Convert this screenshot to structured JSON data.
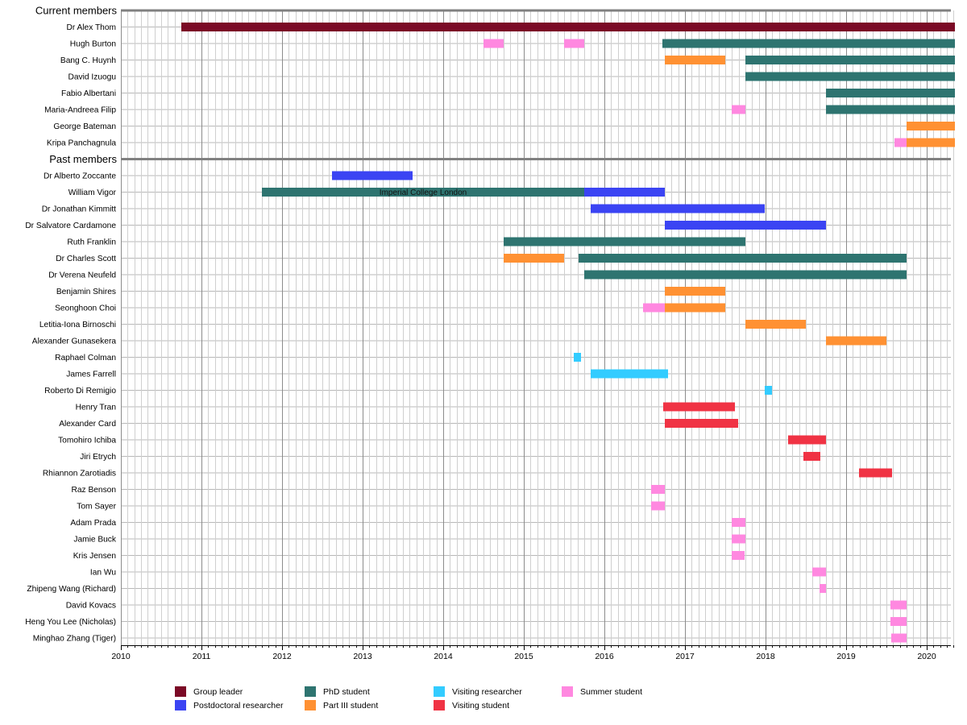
{
  "chart_data": {
    "type": "timeline",
    "x_axis": {
      "min": 2010,
      "max": 2020.35,
      "ticks": [
        "2010",
        "2011",
        "2012",
        "2013",
        "2014",
        "2015",
        "2016",
        "2017",
        "2018",
        "2019",
        "2020"
      ]
    },
    "categories": [
      {
        "key": "group_leader",
        "label": "Group leader",
        "color": "#7b0a26"
      },
      {
        "key": "postdoc",
        "label": "Postdoctoral researcher",
        "color": "#3b44f3"
      },
      {
        "key": "phd",
        "label": "PhD student",
        "color": "#2e7470"
      },
      {
        "key": "part3",
        "label": "Part III student",
        "color": "#ff9133"
      },
      {
        "key": "visiting_researcher",
        "label": "Visiting researcher",
        "color": "#33ccff"
      },
      {
        "key": "visiting_student",
        "label": "Visiting student",
        "color": "#f03344"
      },
      {
        "key": "summer",
        "label": "Summer student",
        "color": "#ff88e0"
      }
    ],
    "sections": [
      {
        "title": "Current members",
        "members": [
          {
            "name": "Dr Alex Thom",
            "periods": [
              {
                "cat": "group_leader",
                "start": 2010.75,
                "end": 2020.35
              }
            ]
          },
          {
            "name": "Hugh Burton",
            "periods": [
              {
                "cat": "summer",
                "start": 2014.5,
                "end": 2014.75
              },
              {
                "cat": "summer",
                "start": 2015.5,
                "end": 2015.75
              },
              {
                "cat": "phd",
                "start": 2016.72,
                "end": 2020.35
              }
            ]
          },
          {
            "name": "Bang C. Huynh",
            "periods": [
              {
                "cat": "part3",
                "start": 2016.75,
                "end": 2017.5
              },
              {
                "cat": "phd",
                "start": 2017.75,
                "end": 2020.35
              }
            ]
          },
          {
            "name": "David Izuogu",
            "periods": [
              {
                "cat": "phd",
                "start": 2017.75,
                "end": 2020.35
              }
            ]
          },
          {
            "name": "Fabio Albertani",
            "periods": [
              {
                "cat": "phd",
                "start": 2018.75,
                "end": 2020.35
              }
            ]
          },
          {
            "name": "Maria-Andreea Filip",
            "periods": [
              {
                "cat": "summer",
                "start": 2017.58,
                "end": 2017.75
              },
              {
                "cat": "phd",
                "start": 2018.75,
                "end": 2020.35
              }
            ]
          },
          {
            "name": "George Bateman",
            "periods": [
              {
                "cat": "part3",
                "start": 2019.75,
                "end": 2020.35
              }
            ]
          },
          {
            "name": "Kripa Panchagnula",
            "periods": [
              {
                "cat": "summer",
                "start": 2019.6,
                "end": 2019.75
              },
              {
                "cat": "part3",
                "start": 2019.75,
                "end": 2020.35
              }
            ]
          }
        ]
      },
      {
        "title": "Past members",
        "members": [
          {
            "name": "Dr Alberto Zoccante",
            "periods": [
              {
                "cat": "postdoc",
                "start": 2012.62,
                "end": 2013.62
              }
            ]
          },
          {
            "name": "William Vigor",
            "periods": [
              {
                "cat": "phd",
                "start": 2011.75,
                "end": 2015.75
              },
              {
                "cat": "postdoc",
                "start": 2015.75,
                "end": 2016.75
              }
            ]
          },
          {
            "name": "Dr Jonathan Kimmitt",
            "periods": [
              {
                "cat": "postdoc",
                "start": 2015.83,
                "end": 2017.99
              }
            ]
          },
          {
            "name": "Dr Salvatore Cardamone",
            "periods": [
              {
                "cat": "postdoc",
                "start": 2016.75,
                "end": 2018.75
              }
            ]
          },
          {
            "name": "Ruth Franklin",
            "periods": [
              {
                "cat": "phd",
                "start": 2014.75,
                "end": 2017.75
              }
            ]
          },
          {
            "name": "Dr Charles Scott",
            "periods": [
              {
                "cat": "part3",
                "start": 2014.75,
                "end": 2015.5
              },
              {
                "cat": "phd",
                "start": 2015.68,
                "end": 2019.75
              }
            ]
          },
          {
            "name": "Dr Verena Neufeld",
            "periods": [
              {
                "cat": "phd",
                "start": 2015.75,
                "end": 2019.75
              }
            ]
          },
          {
            "name": "Benjamin Shires",
            "periods": [
              {
                "cat": "part3",
                "start": 2016.75,
                "end": 2017.5
              }
            ]
          },
          {
            "name": "Seonghoon Choi",
            "periods": [
              {
                "cat": "summer",
                "start": 2016.48,
                "end": 2016.75
              },
              {
                "cat": "part3",
                "start": 2016.75,
                "end": 2017.5
              }
            ]
          },
          {
            "name": "Letitia-Iona Birnoschi",
            "periods": [
              {
                "cat": "part3",
                "start": 2017.75,
                "end": 2018.5
              }
            ]
          },
          {
            "name": "Alexander Gunasekera",
            "periods": [
              {
                "cat": "part3",
                "start": 2018.75,
                "end": 2019.5
              }
            ]
          },
          {
            "name": "Raphael Colman",
            "periods": [
              {
                "cat": "visiting_researcher",
                "start": 2015.62,
                "end": 2015.71
              }
            ]
          },
          {
            "name": "James Farrell",
            "periods": [
              {
                "cat": "visiting_researcher",
                "start": 2015.83,
                "end": 2016.79
              }
            ]
          },
          {
            "name": "Roberto Di Remigio",
            "periods": [
              {
                "cat": "visiting_researcher",
                "start": 2017.99,
                "end": 2018.08
              }
            ]
          },
          {
            "name": "Henry Tran",
            "periods": [
              {
                "cat": "visiting_student",
                "start": 2016.73,
                "end": 2017.62
              }
            ]
          },
          {
            "name": "Alexander Card",
            "periods": [
              {
                "cat": "visiting_student",
                "start": 2016.75,
                "end": 2017.66
              }
            ]
          },
          {
            "name": "Tomohiro Ichiba",
            "periods": [
              {
                "cat": "visiting_student",
                "start": 2018.28,
                "end": 2018.75
              }
            ]
          },
          {
            "name": "Jiri Etrych",
            "periods": [
              {
                "cat": "visiting_student",
                "start": 2018.47,
                "end": 2018.68
              }
            ]
          },
          {
            "name": "Rhiannon Zarotiadis",
            "periods": [
              {
                "cat": "visiting_student",
                "start": 2019.16,
                "end": 2019.57
              }
            ]
          },
          {
            "name": "Raz Benson",
            "periods": [
              {
                "cat": "summer",
                "start": 2016.58,
                "end": 2016.75
              }
            ]
          },
          {
            "name": "Tom Sayer",
            "periods": [
              {
                "cat": "summer",
                "start": 2016.58,
                "end": 2016.75
              }
            ]
          },
          {
            "name": "Adam Prada",
            "periods": [
              {
                "cat": "summer",
                "start": 2017.58,
                "end": 2017.75
              }
            ]
          },
          {
            "name": "Jamie Buck",
            "periods": [
              {
                "cat": "summer",
                "start": 2017.58,
                "end": 2017.75
              }
            ]
          },
          {
            "name": "Kris Jensen",
            "periods": [
              {
                "cat": "summer",
                "start": 2017.58,
                "end": 2017.74
              }
            ]
          },
          {
            "name": "Ian Wu",
            "periods": [
              {
                "cat": "summer",
                "start": 2018.58,
                "end": 2018.75
              }
            ]
          },
          {
            "name": "Zhipeng Wang (Richard)",
            "periods": [
              {
                "cat": "summer",
                "start": 2018.67,
                "end": 2018.75
              }
            ]
          },
          {
            "name": "David Kovacs",
            "periods": [
              {
                "cat": "summer",
                "start": 2019.55,
                "end": 2019.75
              }
            ]
          },
          {
            "name": "Heng You Lee (Nicholas)",
            "periods": [
              {
                "cat": "summer",
                "start": 2019.55,
                "end": 2019.75
              }
            ]
          },
          {
            "name": "Minghao Zhang (Tiger)",
            "periods": [
              {
                "cat": "summer",
                "start": 2019.56,
                "end": 2019.75
              }
            ]
          }
        ]
      }
    ],
    "annotations": [
      {
        "text": "Imperial College London",
        "member": "William Vigor",
        "x": 2013.75
      }
    ]
  }
}
